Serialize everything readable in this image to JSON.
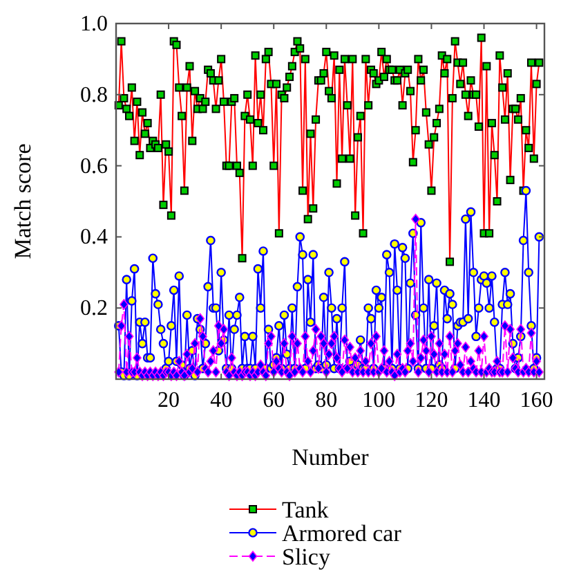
{
  "chart_data": {
    "type": "line",
    "xlabel": "Number",
    "ylabel": "Match score",
    "xlim": [
      0,
      163
    ],
    "xticks": [
      20,
      40,
      60,
      80,
      100,
      120,
      140,
      160
    ],
    "ylim": [
      0,
      1
    ],
    "yticks": [
      {
        "value": 0.2,
        "label": "0.2"
      },
      {
        "value": 0.4,
        "label": "0.4"
      },
      {
        "value": 0.6,
        "label": "0.6"
      },
      {
        "value": 0.8,
        "label": "0.8"
      },
      {
        "value": 1,
        "label": "1.0"
      }
    ],
    "grid": false,
    "legend": "bottom",
    "x": [
      1,
      2,
      3,
      4,
      5,
      6,
      7,
      8,
      9,
      10,
      11,
      12,
      13,
      14,
      15,
      16,
      17,
      18,
      19,
      20,
      21,
      22,
      23,
      24,
      25,
      26,
      27,
      28,
      29,
      30,
      31,
      32,
      33,
      34,
      35,
      36,
      37,
      38,
      39,
      40,
      41,
      42,
      43,
      44,
      45,
      46,
      47,
      48,
      49,
      50,
      51,
      52,
      53,
      54,
      55,
      56,
      57,
      58,
      59,
      60,
      61,
      62,
      63,
      64,
      65,
      66,
      67,
      68,
      69,
      70,
      71,
      72,
      73,
      74,
      75,
      76,
      77,
      78,
      79,
      80,
      81,
      82,
      83,
      84,
      85,
      86,
      87,
      88,
      89,
      90,
      91,
      92,
      93,
      94,
      95,
      96,
      97,
      98,
      99,
      100,
      101,
      102,
      103,
      104,
      105,
      106,
      107,
      108,
      109,
      110,
      111,
      112,
      113,
      114,
      115,
      116,
      117,
      118,
      119,
      120,
      121,
      122,
      123,
      124,
      125,
      126,
      127,
      128,
      129,
      130,
      131,
      132,
      133,
      134,
      135,
      136,
      137,
      138,
      139,
      140,
      141,
      142,
      143,
      144,
      145,
      146,
      147,
      148,
      149,
      150,
      151,
      152,
      153,
      154,
      155,
      156,
      157,
      158,
      159,
      160,
      161
    ],
    "series": [
      {
        "name": "Tank",
        "color": "#ff0000",
        "marker": "square",
        "line_style": "solid",
        "values": [
          0.77,
          0.95,
          0.79,
          0.76,
          0.74,
          0.82,
          0.67,
          0.78,
          0.63,
          0.75,
          0.69,
          0.72,
          0.65,
          0.67,
          0.66,
          0.65,
          0.8,
          0.49,
          0.66,
          0.64,
          0.46,
          0.95,
          0.94,
          0.82,
          0.74,
          0.53,
          0.82,
          0.88,
          0.67,
          0.81,
          0.76,
          0.79,
          0.76,
          0.78,
          0.87,
          0.86,
          0.84,
          0.76,
          0.84,
          0.9,
          0.78,
          0.6,
          0.6,
          0.78,
          0.79,
          0.6,
          0.58,
          0.34,
          0.74,
          0.8,
          0.73,
          0.6,
          0.91,
          0.72,
          0.8,
          0.7,
          0.9,
          0.92,
          0.83,
          0.6,
          0.83,
          0.41,
          0.8,
          0.79,
          0.82,
          0.85,
          0.88,
          0.92,
          0.95,
          0.93,
          0.53,
          0.9,
          0.45,
          0.69,
          0.48,
          0.73,
          0.84,
          0.84,
          0.86,
          0.92,
          0.81,
          0.79,
          0.91,
          0.55,
          0.87,
          0.62,
          0.9,
          0.77,
          0.62,
          0.9,
          0.46,
          0.68,
          0.74,
          0.41,
          0.9,
          0.77,
          0.87,
          0.86,
          0.83,
          0.84,
          0.92,
          0.85,
          0.9,
          0.87,
          0.87,
          0.84,
          0.84,
          0.87,
          0.77,
          0.86,
          0.87,
          0.81,
          0.61,
          0.7,
          0.9,
          0.84,
          0.87,
          0.75,
          0.66,
          0.53,
          0.68,
          0.72,
          0.76,
          0.91,
          0.86,
          0.9,
          0.33,
          0.79,
          0.95,
          0.89,
          0.83,
          0.89,
          0.8,
          0.74,
          0.84,
          0.8,
          0.8,
          0.71,
          0.96,
          0.41,
          0.88,
          0.41,
          0.72,
          0.63,
          0.5,
          0.91,
          0.82,
          0.73,
          0.86,
          0.56,
          0.76,
          0.76,
          0.73,
          0.79,
          0.53,
          0.7,
          0.65,
          0.89,
          0.62,
          0.83,
          0.89
        ]
      },
      {
        "name": "Armored car",
        "color": "#0000ff",
        "marker": "circle",
        "line_style": "solid",
        "values": [
          0.15,
          0.02,
          0.01,
          0.28,
          0.01,
          0.22,
          0.31,
          0.01,
          0.16,
          0.1,
          0.16,
          0.06,
          0.06,
          0.34,
          0.24,
          0.21,
          0.14,
          0.1,
          0.03,
          0.05,
          0.15,
          0.25,
          0.05,
          0.29,
          0.04,
          0.01,
          0.18,
          0.03,
          0.08,
          0.01,
          0.17,
          0.14,
          0.03,
          0.1,
          0.26,
          0.39,
          0.2,
          0.2,
          0.08,
          0.3,
          0.11,
          0.03,
          0.18,
          0.03,
          0.14,
          0.18,
          0.23,
          0.03,
          0.12,
          0.03,
          0.03,
          0.12,
          0.03,
          0.31,
          0.2,
          0.36,
          0.03,
          0.14,
          0.03,
          0.04,
          0.06,
          0.15,
          0.03,
          0.18,
          0.07,
          0.03,
          0.2,
          0.03,
          0.26,
          0.4,
          0.35,
          0.03,
          0.28,
          0.16,
          0.35,
          0.03,
          0.04,
          0.03,
          0.23,
          0.04,
          0.3,
          0.2,
          0.03,
          0.17,
          0.03,
          0.2,
          0.33,
          0.03,
          0.05,
          0.03,
          0.03,
          0.04,
          0.11,
          0.03,
          0.03,
          0.2,
          0.17,
          0.03,
          0.25,
          0.2,
          0.23,
          0.03,
          0.35,
          0.3,
          0.03,
          0.38,
          0.25,
          0.03,
          0.37,
          0.34,
          0.03,
          0.27,
          0.41,
          0.18,
          0.03,
          0.44,
          0.2,
          0.03,
          0.28,
          0.03,
          0.15,
          0.27,
          0.04,
          0.03,
          0.25,
          0.17,
          0.24,
          0.21,
          0.03,
          0.15,
          0.16,
          0.16,
          0.45,
          0.17,
          0.47,
          0.3,
          0.12,
          0.2,
          0.28,
          0.29,
          0.27,
          0.2,
          0.29,
          0.16,
          0.03,
          0.03,
          0.21,
          0.3,
          0.21,
          0.24,
          0.1,
          0.03,
          0.06,
          0.12,
          0.39,
          0.53,
          0.3,
          0.15,
          0.03,
          0.06,
          0.4
        ]
      },
      {
        "name": "Slicy",
        "color": "#ff00ff",
        "marker": "diamond",
        "line_style": "dashed",
        "values": [
          0.02,
          0.15,
          0.21,
          0.02,
          0.12,
          0.02,
          0.02,
          0.06,
          0.02,
          0.01,
          0.02,
          0.01,
          0.02,
          0.01,
          0.02,
          0.01,
          0.02,
          0.01,
          0.02,
          0.02,
          0.01,
          0.02,
          0.01,
          0.05,
          0.02,
          0.01,
          0.07,
          0.02,
          0.03,
          0.1,
          0.02,
          0.17,
          0.12,
          0.03,
          0.02,
          0.05,
          0.08,
          0.02,
          0.15,
          0.1,
          0.14,
          0.02,
          0.01,
          0.06,
          0.02,
          0.01,
          0.02,
          0.01,
          0.02,
          0.02,
          0.01,
          0.02,
          0.01,
          0.02,
          0.04,
          0.02,
          0.01,
          0.1,
          0.12,
          0.02,
          0.05,
          0.03,
          0.02,
          0.1,
          0.02,
          0.01,
          0.12,
          0.02,
          0.1,
          0.03,
          0.02,
          0.12,
          0.05,
          0.02,
          0.08,
          0.14,
          0.03,
          0.12,
          0.1,
          0.02,
          0.07,
          0.1,
          0.12,
          0.06,
          0.03,
          0.02,
          0.11,
          0.03,
          0.09,
          0.02,
          0.06,
          0.02,
          0.08,
          0.02,
          0.05,
          0.02,
          0.1,
          0.02,
          0.12,
          0.02,
          0.03,
          0.08,
          0.02,
          0.05,
          0.02,
          0.01,
          0.07,
          0.02,
          0.03,
          0.02,
          0.08,
          0.1,
          0.05,
          0.45,
          0.02,
          0.06,
          0.11,
          0.08,
          0.02,
          0.12,
          0.07,
          0.02,
          0.1,
          0.02,
          0.07,
          0.02,
          0.12,
          0.02,
          0.08,
          0.1,
          0.04,
          0.02,
          0.09,
          0.02,
          0.05,
          0.03,
          0.02,
          0.08,
          0.02,
          0.12,
          0.02,
          0.03,
          0.02,
          0.02,
          0.05,
          0.02,
          0.02,
          0.15,
          0.02,
          0.14,
          0.06,
          0.03,
          0.02,
          0.14,
          0.02,
          0.03,
          0.02,
          0.13,
          0.02,
          0.05,
          0.02
        ]
      }
    ]
  }
}
